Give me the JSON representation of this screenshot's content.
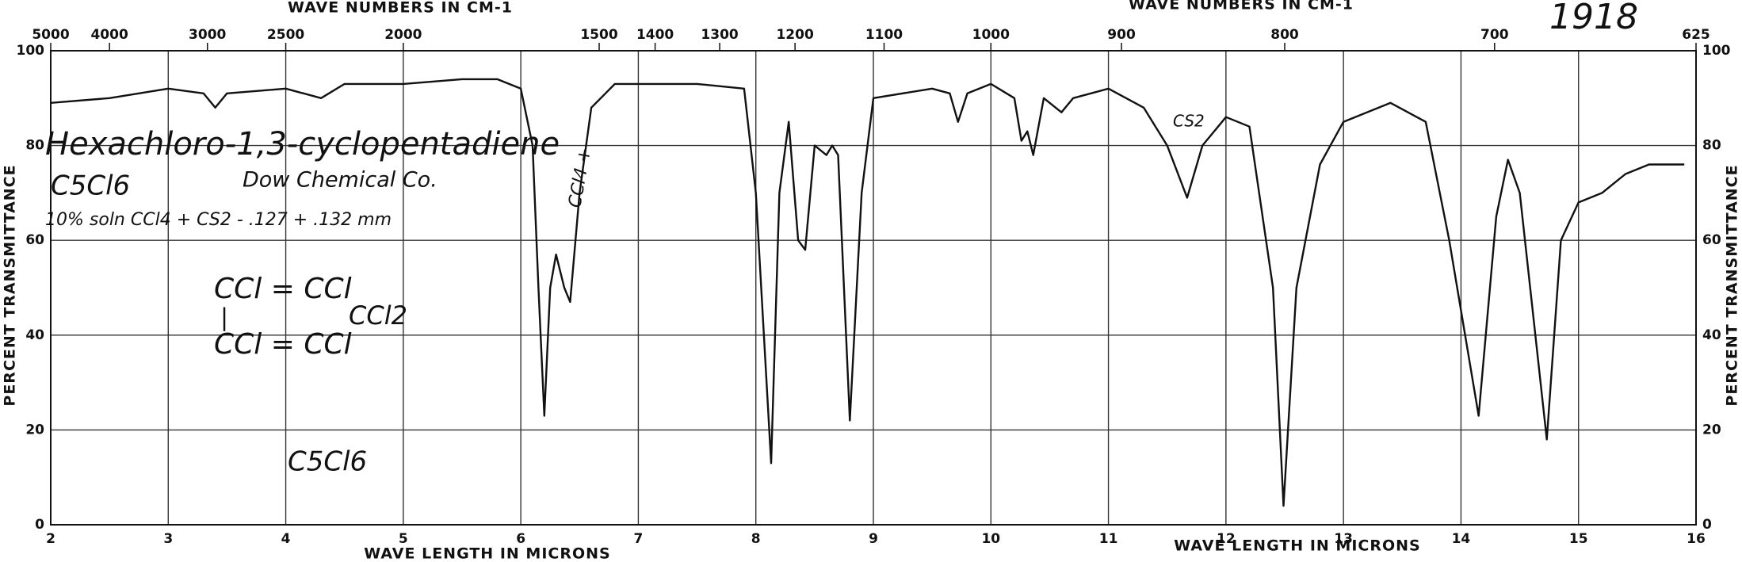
{
  "chart_data": {
    "type": "line",
    "x_title": "WAVE LENGTH IN MICRONS",
    "x2_title": "WAVE NUMBERS IN CM-1",
    "y_title": "PERCENT TRANSMITTANCE",
    "xlim": [
      2,
      16
    ],
    "xticks": [
      2,
      3,
      4,
      5,
      6,
      7,
      8,
      9,
      10,
      11,
      12,
      13,
      14,
      15,
      16
    ],
    "x2ticks": [
      5000,
      4000,
      3000,
      2500,
      2000,
      1500,
      1400,
      1300,
      1200,
      1100,
      1000,
      900,
      800,
      700,
      625
    ],
    "ylim": [
      0,
      100
    ],
    "yticks": [
      0,
      20,
      40,
      60,
      80,
      100
    ],
    "grid": true,
    "x": [
      2.0,
      2.5,
      3.0,
      3.3,
      3.4,
      3.5,
      4.0,
      4.3,
      4.5,
      5.0,
      5.5,
      5.8,
      6.0,
      6.1,
      6.15,
      6.2,
      6.25,
      6.3,
      6.37,
      6.42,
      6.5,
      6.6,
      6.8,
      7.5,
      7.9,
      8.0,
      8.13,
      8.2,
      8.28,
      8.36,
      8.42,
      8.5,
      8.6,
      8.65,
      8.7,
      8.8,
      8.9,
      9.0,
      9.5,
      9.65,
      9.72,
      9.8,
      10.0,
      10.2,
      10.26,
      10.31,
      10.36,
      10.45,
      10.6,
      10.7,
      11.0,
      11.3,
      11.5,
      11.67,
      11.8,
      12.0,
      12.2,
      12.4,
      12.49,
      12.6,
      12.8,
      13.0,
      13.4,
      13.7,
      13.9,
      14.15,
      14.3,
      14.4,
      14.5,
      14.73,
      14.85,
      15.0,
      15.2,
      15.4,
      15.6,
      15.9
    ],
    "series": [
      {
        "name": "Hexachloro-1,3-cyclopentadiene",
        "color": "#111111",
        "values": [
          89,
          90,
          92,
          91,
          88,
          91,
          92,
          90,
          93,
          93,
          94,
          94,
          92,
          80,
          50,
          23,
          50,
          57,
          50,
          47,
          70,
          88,
          93,
          93,
          92,
          70,
          13,
          70,
          85,
          60,
          58,
          80,
          78,
          80,
          78,
          22,
          70,
          90,
          92,
          91,
          85,
          91,
          93,
          90,
          81,
          83,
          78,
          90,
          87,
          90,
          92,
          88,
          80,
          69,
          80,
          86,
          84,
          50,
          4,
          50,
          76,
          85,
          89,
          85,
          60,
          23,
          65,
          77,
          70,
          18,
          60,
          68,
          70,
          74,
          76,
          76
        ]
      }
    ],
    "annotations": [
      "1918",
      "Hexachloro-1,3-cyclopentadiene",
      "C5Cl6",
      "Dow Chemical Co.",
      "10% soln CCl4 + CS2 - .127 + .132 mm",
      "CCl4 +",
      "CS2",
      "CCl = CCl",
      "CCl = CCl",
      "CCl2",
      "|",
      "C5Cl6"
    ]
  }
}
